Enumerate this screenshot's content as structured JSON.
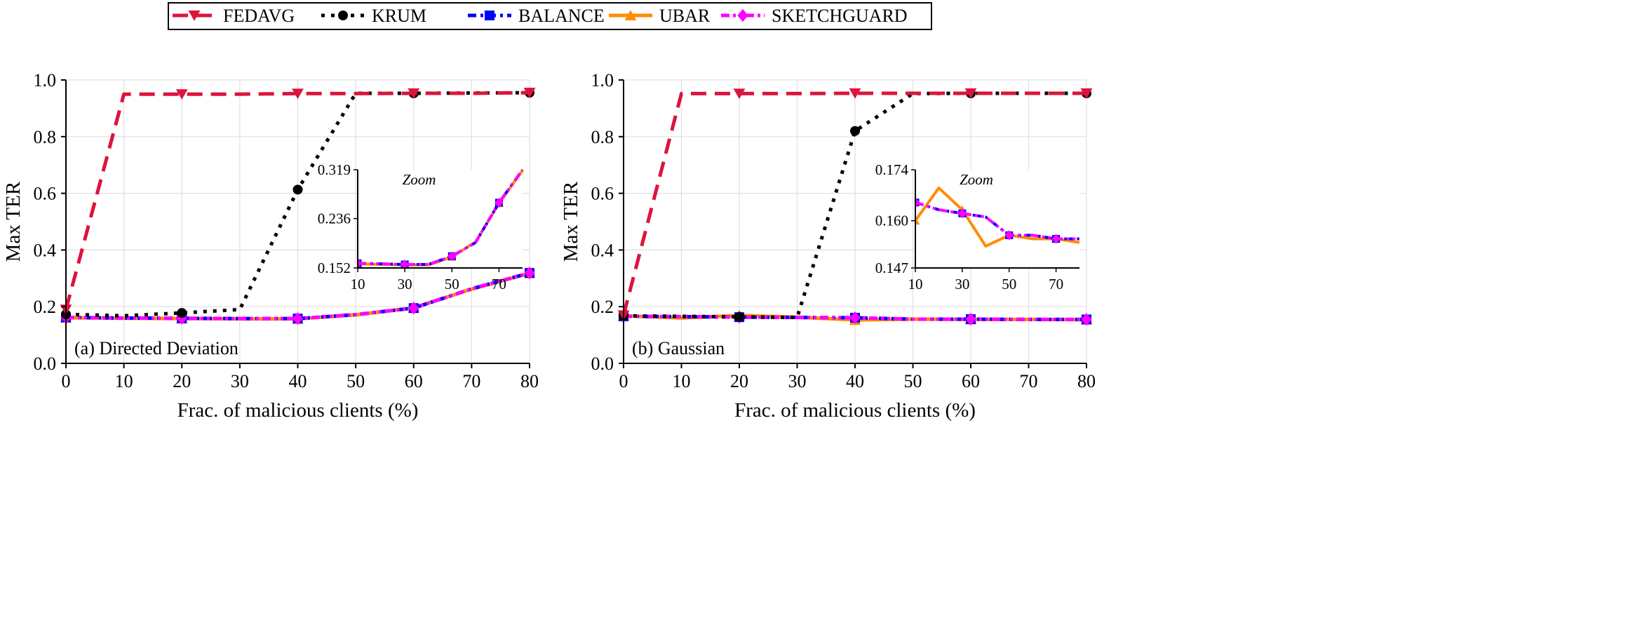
{
  "legend": {
    "placement": "top-center",
    "entries": [
      {
        "name": "FEDAVG",
        "color": "#dc143c",
        "dash": "dashed",
        "marker": "triangle-down"
      },
      {
        "name": "KRUM",
        "color": "#000000",
        "dash": "dotted",
        "marker": "circle"
      },
      {
        "name": "BALANCE",
        "color": "#0000ff",
        "dash": "dash-dot",
        "marker": "square"
      },
      {
        "name": "UBAR",
        "color": "#ff8c00",
        "dash": "solid",
        "marker": "triangle-up"
      },
      {
        "name": "SKETCHGUARD",
        "color": "#ff00ff",
        "dash": "dash-dot-dot",
        "marker": "diamond"
      }
    ]
  },
  "chart_data": [
    {
      "type": "line",
      "annotation": "(a) Directed Deviation",
      "xlabel": "Frac. of malicious clients (%)",
      "ylabel": "Max TER",
      "xlim": [
        0,
        80
      ],
      "ylim": [
        0,
        1.0
      ],
      "xticks": [
        "0",
        "10",
        "20",
        "30",
        "40",
        "50",
        "60",
        "70",
        "80"
      ],
      "yticks": [
        "0.0",
        "0.2",
        "0.4",
        "0.6",
        "0.8",
        "1.0"
      ],
      "grid": true,
      "x": [
        0,
        10,
        20,
        30,
        40,
        50,
        60,
        70,
        80
      ],
      "series": [
        {
          "name": "FEDAVG",
          "values": [
            0.19,
            0.95,
            0.95,
            0.95,
            0.952,
            0.952,
            0.953,
            0.953,
            0.955
          ]
        },
        {
          "name": "KRUM",
          "values": [
            0.173,
            0.168,
            0.178,
            0.19,
            0.613,
            0.953,
            0.953,
            0.954,
            0.955
          ]
        },
        {
          "name": "BALANCE",
          "values": [
            0.162,
            0.16,
            0.159,
            0.158,
            0.158,
            0.172,
            0.195,
            0.263,
            0.319
          ]
        },
        {
          "name": "UBAR",
          "values": [
            0.161,
            0.159,
            0.158,
            0.157,
            0.157,
            0.171,
            0.196,
            0.262,
            0.318
          ]
        },
        {
          "name": "SKETCHGUARD",
          "values": [
            0.162,
            0.16,
            0.159,
            0.158,
            0.158,
            0.172,
            0.195,
            0.263,
            0.319
          ]
        }
      ],
      "inset": {
        "title": "Zoom",
        "xlim": [
          10,
          80
        ],
        "ylim": [
          0.152,
          0.319
        ],
        "xticks": [
          "10",
          "30",
          "50",
          "70"
        ],
        "yticks": [
          "0.152",
          "0.236",
          "0.319"
        ]
      }
    },
    {
      "type": "line",
      "annotation": "(b) Gaussian",
      "xlabel": "Frac. of malicious clients (%)",
      "ylabel": "Max TER",
      "xlim": [
        0,
        80
      ],
      "ylim": [
        0,
        1.0
      ],
      "xticks": [
        "0",
        "10",
        "20",
        "30",
        "40",
        "50",
        "60",
        "70",
        "80"
      ],
      "yticks": [
        "0.0",
        "0.2",
        "0.4",
        "0.6",
        "0.8",
        "1.0"
      ],
      "grid": true,
      "x": [
        0,
        10,
        20,
        30,
        40,
        50,
        60,
        70,
        80
      ],
      "series": [
        {
          "name": "FEDAVG",
          "values": [
            0.17,
            0.952,
            0.952,
            0.952,
            0.953,
            0.953,
            0.953,
            0.953,
            0.953
          ]
        },
        {
          "name": "KRUM",
          "values": [
            0.168,
            0.166,
            0.164,
            0.162,
            0.82,
            0.952,
            0.953,
            0.953,
            0.953
          ]
        },
        {
          "name": "BALANCE",
          "values": [
            0.166,
            0.165,
            0.163,
            0.162,
            0.161,
            0.156,
            0.156,
            0.155,
            0.155
          ]
        },
        {
          "name": "UBAR",
          "values": [
            0.168,
            0.16,
            0.169,
            0.163,
            0.153,
            0.156,
            0.155,
            0.155,
            0.154
          ]
        },
        {
          "name": "SKETCHGUARD",
          "values": [
            0.166,
            0.165,
            0.163,
            0.162,
            0.161,
            0.156,
            0.156,
            0.155,
            0.155
          ]
        }
      ],
      "inset": {
        "title": "Zoom",
        "xlim": [
          10,
          80
        ],
        "ylim": [
          0.147,
          0.174
        ],
        "xticks": [
          "10",
          "30",
          "50",
          "70"
        ],
        "yticks": [
          "0.147",
          "0.160",
          "0.174"
        ]
      }
    }
  ]
}
